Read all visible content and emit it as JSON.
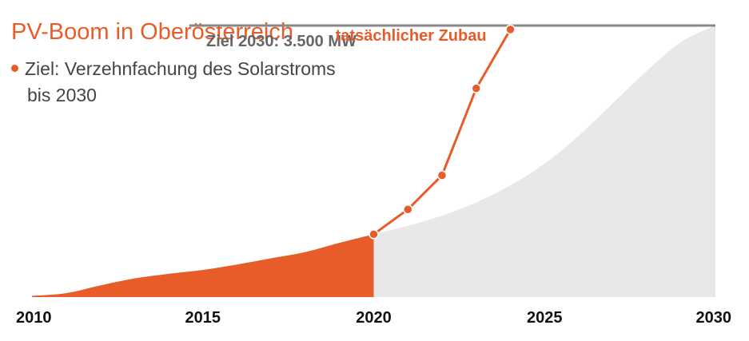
{
  "title": "PV-Boom in Oberösterreich",
  "subtitle_line1": "Ziel: Verzehnfachung des Solarstroms",
  "subtitle_line2": "bis 2030",
  "colors": {
    "accent": "#e85c2a",
    "target_area": "#e8e8e8",
    "target_line": "#888888",
    "text": "#444444",
    "axis_text": "#111111"
  },
  "chart_data": {
    "type": "area",
    "unit": "MW",
    "xlim": [
      2010,
      2030
    ],
    "ylim": [
      0,
      3500
    ],
    "x_ticks": [
      "2010",
      "2015",
      "2020",
      "2025",
      "2030"
    ],
    "target": {
      "label": "Ziel 2030: 3.500 MW",
      "value": 3500,
      "curve": {
        "x": [
          2020,
          2021,
          2022,
          2023,
          2024,
          2025,
          2026,
          2027,
          2028,
          2029,
          2030
        ],
        "y": [
          810,
          920,
          1050,
          1220,
          1440,
          1720,
          2080,
          2500,
          2920,
          3290,
          3500
        ]
      }
    },
    "historical": {
      "x": [
        2010,
        2011,
        2012,
        2013,
        2014,
        2015,
        2016,
        2017,
        2018,
        2019,
        2020
      ],
      "y": [
        15,
        50,
        150,
        240,
        300,
        350,
        420,
        500,
        580,
        700,
        810
      ]
    },
    "actual": {
      "label": "tatsächlicher Zubau",
      "x": [
        2020,
        2021,
        2022,
        2023,
        2024
      ],
      "y": [
        810,
        1130,
        1570,
        2690,
        3450
      ]
    }
  }
}
